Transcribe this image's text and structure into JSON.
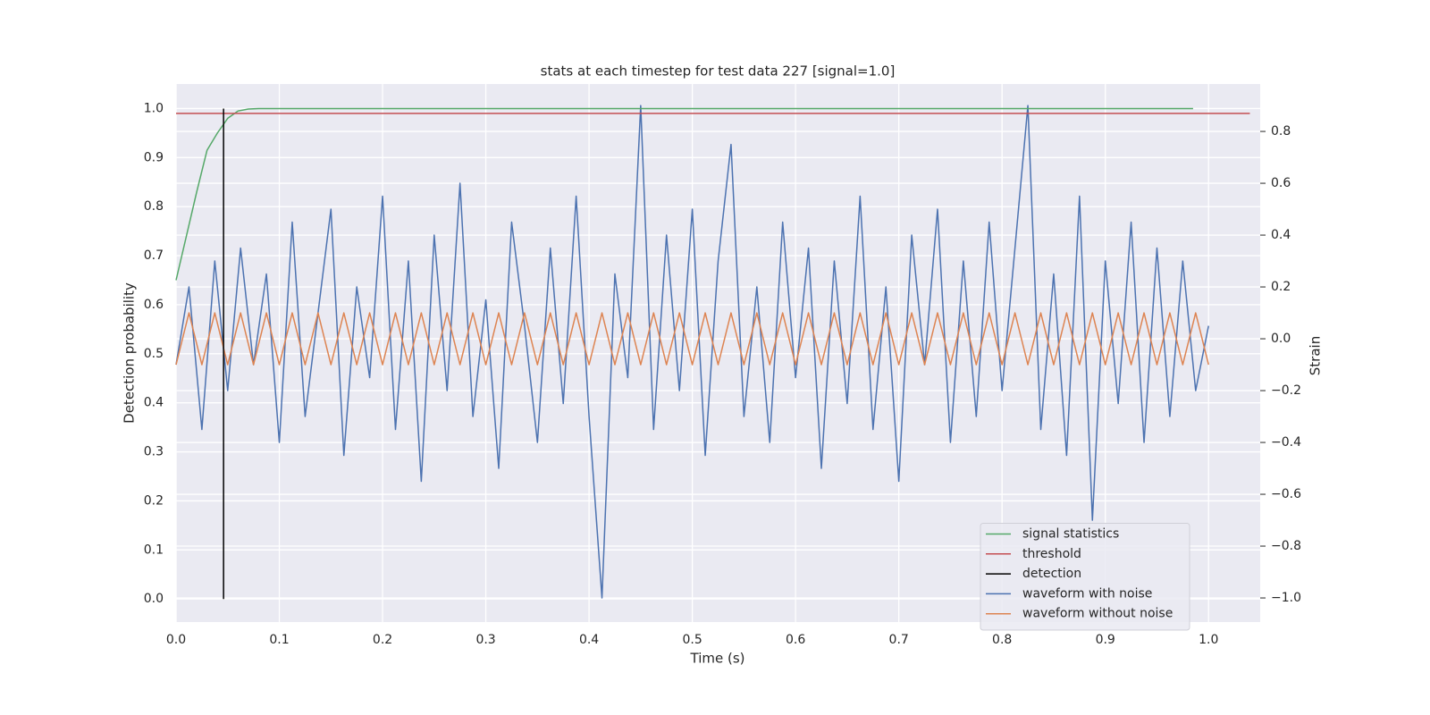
{
  "chart_data": {
    "type": "line",
    "title": "stats at each timestep for test data 227 [signal=1.0]",
    "x_label": "Time (s)",
    "y_label": "Detection probability",
    "y2_label": "Strain",
    "xlim": [
      0,
      1.05
    ],
    "ylim": [
      -0.047,
      1.05
    ],
    "y2lim": [
      -1.093,
      0.983
    ],
    "xticks": [
      {
        "value": 0,
        "label": "0.0"
      },
      0.1,
      0.2,
      0.3,
      0.4,
      0.5,
      0.6,
      0.7,
      0.8,
      0.9,
      {
        "value": 1,
        "label": "1.0"
      }
    ],
    "yticks": [
      {
        "value": 0,
        "label": "0.0"
      },
      0.1,
      0.2,
      0.3,
      0.4,
      0.5,
      0.6,
      0.7,
      0.8,
      0.9,
      {
        "value": 1,
        "label": "1.0"
      }
    ],
    "y2ticks": [
      {
        "value": -1,
        "label": "−1.0"
      },
      {
        "value": -0.8,
        "label": "−0.8"
      },
      {
        "value": -0.6,
        "label": "−0.6"
      },
      {
        "value": -0.4,
        "label": "−0.4"
      },
      {
        "value": -0.2,
        "label": "−0.2"
      },
      {
        "value": 0,
        "label": "0.0"
      },
      0.2,
      0.4,
      0.6,
      0.8
    ],
    "grid": true,
    "legend": "lower right",
    "x": [
      0,
      0.0125,
      0.025,
      0.0375,
      0.05,
      0.0625,
      0.075,
      0.0875,
      0.1,
      0.1125,
      0.125,
      0.1375,
      0.15,
      0.1625,
      0.175,
      0.1875,
      0.2,
      0.2125,
      0.225,
      0.2375,
      0.25,
      0.2625,
      0.275,
      0.2875,
      0.3,
      0.3125,
      0.325,
      0.3375,
      0.35,
      0.3625,
      0.375,
      0.3875,
      0.4,
      0.4125,
      0.425,
      0.4375,
      0.45,
      0.4625,
      0.475,
      0.4875,
      0.5,
      0.5125,
      0.525,
      0.5375,
      0.55,
      0.5625,
      0.575,
      0.5875,
      0.6,
      0.6125,
      0.625,
      0.6375,
      0.65,
      0.6625,
      0.675,
      0.6875,
      0.7,
      0.7125,
      0.725,
      0.7375,
      0.75,
      0.7625,
      0.775,
      0.7875,
      0.8,
      0.8125,
      0.825,
      0.8375,
      0.85,
      0.8625,
      0.875,
      0.8875,
      0.9,
      0.9125,
      0.925,
      0.9375,
      0.95,
      0.9625,
      0.975,
      0.9875,
      1.0
    ],
    "series": [
      {
        "name": "signal statistics",
        "color": "#55a868",
        "x": [
          0,
          0.01,
          0.02,
          0.03,
          0.04,
          0.05,
          0.06,
          0.07,
          0.08,
          0.1,
          0.985
        ],
        "values": [
          0.65,
          0.74,
          0.83,
          0.915,
          0.95,
          0.98,
          0.995,
          0.999,
          1.0,
          1.0,
          1.0
        ]
      },
      {
        "name": "threshold",
        "color": "#c44e52",
        "x": [
          0,
          1.04
        ],
        "values": [
          0.99,
          0.99
        ]
      },
      {
        "name": "detection",
        "color": "#000000",
        "x": [
          0.046,
          0.046
        ],
        "values": [
          0,
          1
        ]
      },
      {
        "name": "waveform with noise",
        "color": "#4c72b0",
        "axis": "y2",
        "values": [
          -0.1,
          0.2,
          -0.35,
          0.3,
          -0.2,
          0.35,
          -0.1,
          0.25,
          -0.4,
          0.45,
          -0.3,
          0.1,
          0.5,
          -0.45,
          0.2,
          -0.15,
          0.55,
          -0.35,
          0.3,
          -0.55,
          0.4,
          -0.2,
          0.6,
          -0.3,
          0.15,
          -0.5,
          0.45,
          0.05,
          -0.4,
          0.35,
          -0.25,
          0.55,
          -0.3,
          -1.0,
          0.25,
          -0.15,
          0.9,
          -0.35,
          0.4,
          -0.2,
          0.5,
          -0.45,
          0.3,
          0.75,
          -0.3,
          0.2,
          -0.4,
          0.45,
          -0.15,
          0.35,
          -0.5,
          0.3,
          -0.25,
          0.55,
          -0.35,
          0.2,
          -0.55,
          0.4,
          -0.1,
          0.5,
          -0.4,
          0.3,
          -0.3,
          0.45,
          -0.2,
          0.35,
          0.9,
          -0.35,
          0.25,
          -0.45,
          0.55,
          -0.7,
          0.3,
          -0.25,
          0.45,
          -0.4,
          0.35,
          -0.3,
          0.3,
          -0.2,
          0.05
        ]
      },
      {
        "name": "waveform without noise",
        "color": "#dd8452",
        "axis": "y2",
        "values": [
          -0.1,
          0.1,
          -0.1,
          0.1,
          -0.1,
          0.1,
          -0.1,
          0.1,
          -0.1,
          0.1,
          -0.1,
          0.1,
          -0.1,
          0.1,
          -0.1,
          0.1,
          -0.1,
          0.1,
          -0.1,
          0.1,
          -0.1,
          0.1,
          -0.1,
          0.1,
          -0.1,
          0.1,
          -0.1,
          0.1,
          -0.1,
          0.1,
          -0.1,
          0.1,
          -0.1,
          0.1,
          -0.1,
          0.1,
          -0.1,
          0.1,
          -0.1,
          0.1,
          -0.1,
          0.1,
          -0.1,
          0.1,
          -0.1,
          0.1,
          -0.1,
          0.1,
          -0.1,
          0.1,
          -0.1,
          0.1,
          -0.1,
          0.1,
          -0.1,
          0.1,
          -0.1,
          0.1,
          -0.1,
          0.1,
          -0.1,
          0.1,
          -0.1,
          0.1,
          -0.1,
          0.1,
          -0.1,
          0.1,
          -0.1,
          0.1,
          -0.1,
          0.1,
          -0.1,
          0.1,
          -0.1,
          0.1,
          -0.1,
          0.1,
          -0.1,
          0.1,
          -0.1
        ]
      }
    ]
  }
}
